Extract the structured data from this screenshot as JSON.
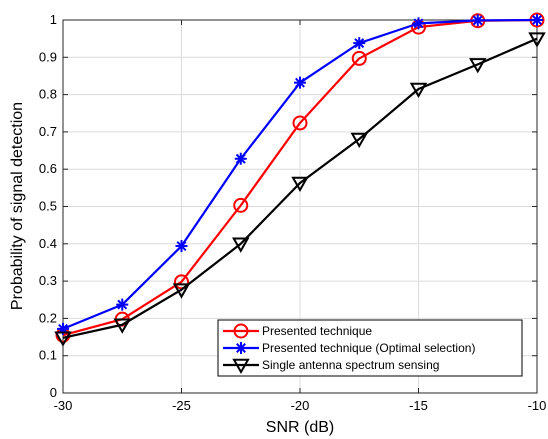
{
  "chart_data": {
    "type": "line",
    "title": "",
    "xlabel": "SNR (dB)",
    "ylabel": "Probability of signal detection",
    "xlim": [
      -30,
      -10
    ],
    "ylim": [
      0,
      1
    ],
    "xticks": [
      -30,
      -25,
      -20,
      -15,
      -10
    ],
    "yticks": [
      0,
      0.1,
      0.2,
      0.3,
      0.4,
      0.5,
      0.6,
      0.7,
      0.8,
      0.9,
      1
    ],
    "grid": true,
    "legend_position": "bottom-right",
    "x": [
      -30,
      -27.5,
      -25,
      -22.5,
      -20,
      -17.5,
      -15,
      -12.5,
      -10
    ],
    "series": [
      {
        "name": "Presented technique",
        "values": [
          0.155,
          0.198,
          0.298,
          0.503,
          0.724,
          0.897,
          0.981,
          0.998,
          1.0
        ],
        "color": "#ff0000",
        "marker": "circle"
      },
      {
        "name": "Presented technique (Optimal selection)",
        "values": [
          0.172,
          0.237,
          0.394,
          0.628,
          0.832,
          0.938,
          0.991,
          0.999,
          1.0
        ],
        "color": "#0000ff",
        "marker": "asterisk"
      },
      {
        "name": "Single antenna spectrum sensing",
        "values": [
          0.148,
          0.183,
          0.277,
          0.4,
          0.563,
          0.681,
          0.815,
          0.881,
          0.95
        ],
        "color": "#000000",
        "marker": "triangle-down"
      }
    ]
  }
}
